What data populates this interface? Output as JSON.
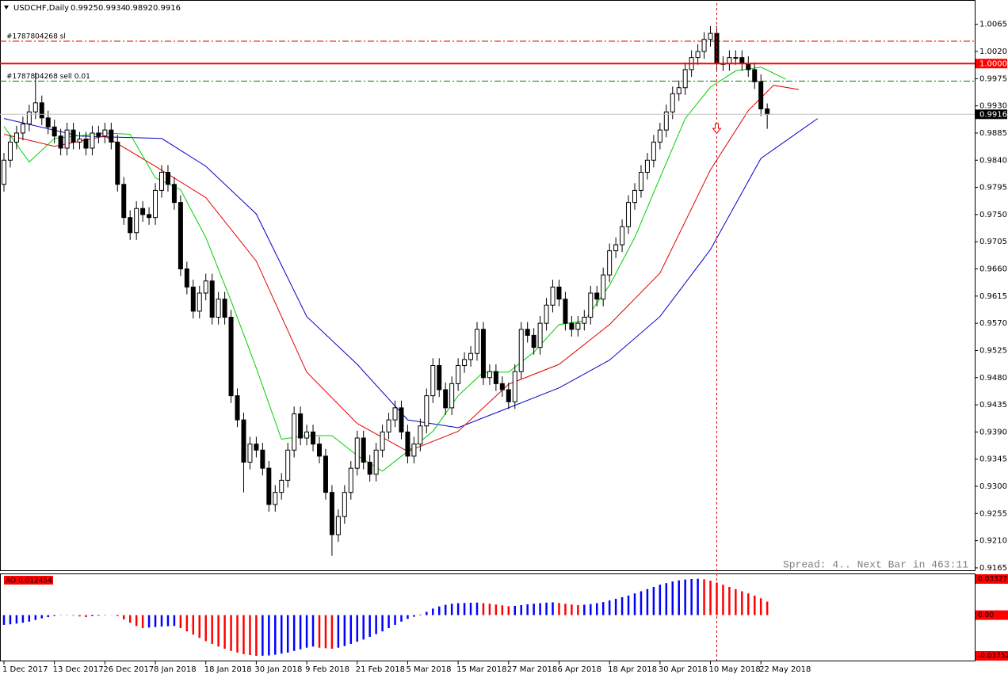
{
  "chart_data": [
    {
      "type": "candlestick",
      "title": "USDCHF,Daily",
      "categories": [
        "1 Dec 2017",
        null,
        null,
        null,
        null,
        null,
        null,
        null,
        "13 Dec 2017",
        null,
        null,
        null,
        null,
        null,
        null,
        null,
        "26 Dec 2017",
        null,
        null,
        null,
        null,
        null,
        null,
        null,
        "8 Jan 2018",
        null,
        null,
        null,
        null,
        null,
        null,
        null,
        "18 Jan 2018",
        null,
        null,
        null,
        null,
        null,
        null,
        null,
        "30 Jan 2018",
        null,
        null,
        null,
        null,
        null,
        null,
        null,
        "9 Feb 2018",
        null,
        null,
        null,
        null,
        null,
        null,
        null,
        "21 Feb 2018",
        null,
        null,
        null,
        null,
        null,
        null,
        null,
        "5 Mar 2018",
        null,
        null,
        null,
        null,
        null,
        null,
        null,
        "15 Mar 2018",
        null,
        null,
        null,
        null,
        null,
        null,
        null,
        "27 Mar 2018",
        null,
        null,
        null,
        null,
        null,
        null,
        null,
        "6 Apr 2018",
        null,
        null,
        null,
        null,
        null,
        null,
        null,
        "18 Apr 2018",
        null,
        null,
        null,
        null,
        null,
        null,
        null,
        "30 Apr 2018",
        null,
        null,
        null,
        null,
        null,
        null,
        null,
        "10 May 2018",
        null,
        null,
        null,
        null,
        null,
        null,
        null,
        "22 May 2018",
        null
      ],
      "open": [
        0.98,
        0.984,
        0.987,
        0.9885,
        0.99,
        0.992,
        0.9935,
        0.991,
        0.9895,
        0.988,
        0.986,
        0.989,
        0.987,
        0.9875,
        0.986,
        0.9885,
        0.988,
        0.989,
        0.987,
        0.98,
        0.9745,
        0.972,
        0.976,
        0.975,
        0.9745,
        0.979,
        0.982,
        0.98,
        0.977,
        0.966,
        0.963,
        0.959,
        0.962,
        0.964,
        0.958,
        0.961,
        0.958,
        0.945,
        0.941,
        0.934,
        0.937,
        0.936,
        0.933,
        0.927,
        0.929,
        0.931,
        0.936,
        0.942,
        0.938,
        0.939,
        0.937,
        0.935,
        0.929,
        0.922,
        0.925,
        0.929,
        0.933,
        0.938,
        0.934,
        0.932,
        0.936,
        0.939,
        0.941,
        0.943,
        0.939,
        0.935,
        0.937,
        0.94,
        0.945,
        0.95,
        0.946,
        0.943,
        0.947,
        0.95,
        0.951,
        0.952,
        0.956,
        0.948,
        0.949,
        0.947,
        0.946,
        0.944,
        0.949,
        0.956,
        0.955,
        0.953,
        0.957,
        0.96,
        0.963,
        0.961,
        0.957,
        0.956,
        0.957,
        0.958,
        0.962,
        0.961,
        0.965,
        0.969,
        0.97,
        0.973,
        0.977,
        0.979,
        0.982,
        0.984,
        0.987,
        0.989,
        0.992,
        0.995,
        0.996,
        0.999,
        1.001,
        1.002,
        1.004,
        1.005,
        1,
        1,
        1.001,
        1.001,
        1,
        0.999,
        0.997,
        0.9925
      ],
      "high": [
        0.9852,
        0.9882,
        0.9897,
        0.9912,
        0.9932,
        0.9985,
        0.9947,
        0.9922,
        0.9907,
        0.9892,
        0.9902,
        0.9902,
        0.9887,
        0.9887,
        0.9897,
        0.9897,
        0.9902,
        0.9902,
        0.9882,
        0.9812,
        0.9757,
        0.9772,
        0.9772,
        0.9762,
        0.9802,
        0.9832,
        0.9832,
        0.9812,
        0.9782,
        0.9672,
        0.9642,
        0.9632,
        0.9652,
        0.9652,
        0.9622,
        0.9622,
        0.9592,
        0.9462,
        0.9422,
        0.9382,
        0.9382,
        0.9372,
        0.9342,
        0.9302,
        0.9322,
        0.9372,
        0.9432,
        0.9432,
        0.9402,
        0.9402,
        0.9382,
        0.9362,
        0.9302,
        0.9262,
        0.9302,
        0.9342,
        0.9392,
        0.9392,
        0.9352,
        0.9372,
        0.9402,
        0.9422,
        0.9442,
        0.9442,
        0.9402,
        0.9382,
        0.9412,
        0.9462,
        0.9512,
        0.9512,
        0.9472,
        0.9482,
        0.9512,
        0.9522,
        0.9532,
        0.9572,
        0.9572,
        0.9502,
        0.9502,
        0.9482,
        0.9472,
        0.9502,
        0.9572,
        0.9572,
        0.9562,
        0.9582,
        0.9612,
        0.9642,
        0.9642,
        0.9622,
        0.9582,
        0.9582,
        0.9592,
        0.9632,
        0.9632,
        0.9662,
        0.9702,
        0.9712,
        0.9742,
        0.9782,
        0.9802,
        0.9832,
        0.9852,
        0.9882,
        0.9902,
        0.9932,
        0.9962,
        0.9972,
        1.0002,
        1.0022,
        1.0032,
        1.0052,
        1.0062,
        1.0062,
        1.0012,
        1.0022,
        1.0022,
        1.0022,
        1.0012,
        1.0002,
        0.9982,
        0.9934
      ],
      "low": [
        0.9788,
        0.9828,
        0.9858,
        0.9873,
        0.9888,
        0.9908,
        0.9898,
        0.9883,
        0.9868,
        0.9848,
        0.9848,
        0.9858,
        0.9858,
        0.9848,
        0.9848,
        0.9868,
        0.9868,
        0.9858,
        0.9788,
        0.9733,
        0.9708,
        0.9708,
        0.9738,
        0.9733,
        0.9733,
        0.9778,
        0.9788,
        0.9758,
        0.9648,
        0.9618,
        0.9578,
        0.9578,
        0.9608,
        0.9568,
        0.9568,
        0.9568,
        0.9438,
        0.9398,
        0.929,
        0.9328,
        0.9348,
        0.9318,
        0.9258,
        0.9258,
        0.9278,
        0.9298,
        0.9348,
        0.9368,
        0.9368,
        0.9358,
        0.9338,
        0.9278,
        0.9185,
        0.9208,
        0.9238,
        0.9278,
        0.9318,
        0.9328,
        0.9308,
        0.9308,
        0.9348,
        0.9378,
        0.9398,
        0.9378,
        0.9338,
        0.9338,
        0.9358,
        0.9388,
        0.9438,
        0.9448,
        0.9418,
        0.9418,
        0.9458,
        0.9488,
        0.9498,
        0.9508,
        0.9468,
        0.9468,
        0.9458,
        0.9448,
        0.9428,
        0.9428,
        0.9478,
        0.9538,
        0.9518,
        0.9518,
        0.9558,
        0.9588,
        0.9598,
        0.9558,
        0.9548,
        0.9548,
        0.9558,
        0.9568,
        0.9598,
        0.9598,
        0.9638,
        0.9678,
        0.9688,
        0.9718,
        0.9758,
        0.9778,
        0.9808,
        0.9828,
        0.9858,
        0.9878,
        0.9908,
        0.9938,
        0.9948,
        0.9978,
        0.9998,
        1.0008,
        1.0028,
        0.9988,
        0.9988,
        0.9988,
        0.9998,
        0.9988,
        0.9978,
        0.9958,
        0.9913,
        0.9892
      ],
      "close": [
        0.984,
        0.987,
        0.9885,
        0.99,
        0.992,
        0.9935,
        0.991,
        0.9895,
        0.988,
        0.986,
        0.989,
        0.987,
        0.9875,
        0.986,
        0.9885,
        0.988,
        0.989,
        0.987,
        0.98,
        0.9745,
        0.972,
        0.976,
        0.975,
        0.9745,
        0.979,
        0.982,
        0.98,
        0.977,
        0.966,
        0.963,
        0.959,
        0.962,
        0.964,
        0.958,
        0.961,
        0.958,
        0.945,
        0.941,
        0.934,
        0.937,
        0.936,
        0.933,
        0.927,
        0.929,
        0.931,
        0.936,
        0.942,
        0.938,
        0.939,
        0.937,
        0.935,
        0.929,
        0.922,
        0.925,
        0.929,
        0.933,
        0.938,
        0.934,
        0.932,
        0.936,
        0.939,
        0.941,
        0.943,
        0.939,
        0.935,
        0.937,
        0.94,
        0.945,
        0.95,
        0.946,
        0.943,
        0.947,
        0.95,
        0.951,
        0.952,
        0.956,
        0.948,
        0.949,
        0.947,
        0.946,
        0.944,
        0.949,
        0.956,
        0.955,
        0.953,
        0.957,
        0.96,
        0.963,
        0.961,
        0.957,
        0.956,
        0.957,
        0.958,
        0.962,
        0.961,
        0.965,
        0.969,
        0.97,
        0.973,
        0.977,
        0.979,
        0.982,
        0.984,
        0.987,
        0.989,
        0.992,
        0.995,
        0.996,
        0.999,
        1.001,
        1.002,
        1.004,
        1.005,
        1,
        1,
        1.001,
        1.001,
        1,
        0.999,
        0.997,
        0.9925,
        0.9916
      ],
      "up_color": "#ffffff",
      "down_color": "#000000",
      "ylim": [
        0.9161,
        1.01
      ],
      "yticks": [
        1.0065,
        {
          "value": 1.002,
          "label": "1.0020"
        },
        0.9975,
        {
          "value": 0.993,
          "label": "0.9930"
        },
        0.9885,
        {
          "value": 0.984,
          "label": "0.9840"
        },
        0.9795,
        {
          "value": 0.975,
          "label": "0.9750"
        },
        0.9705,
        {
          "value": 0.966,
          "label": "0.9660"
        },
        0.9615,
        {
          "value": 0.957,
          "label": "0.9570"
        },
        0.9525,
        {
          "value": 0.948,
          "label": "0.9480"
        },
        0.9435,
        {
          "value": 0.939,
          "label": "0.9390"
        },
        0.9345,
        {
          "value": 0.93,
          "label": "0.9300"
        },
        0.9255,
        {
          "value": 0.921,
          "label": "0.9210"
        },
        0.9165
      ],
      "series": [
        {
          "color": "#0000c8",
          "x": [
            0,
            12,
            25,
            32,
            40,
            48,
            56,
            64,
            72,
            80,
            88,
            96,
            104,
            112,
            120,
            129
          ],
          "values": [
            0.9909,
            0.988,
            0.9876,
            0.983,
            0.9751,
            0.9581,
            0.9502,
            0.941,
            0.9397,
            0.943,
            0.9463,
            0.9509,
            0.9581,
            0.9692,
            0.9843,
            0.9909
          ]
        },
        {
          "color": "#e00000",
          "x": [
            0,
            8,
            16,
            24,
            32,
            40,
            48,
            56,
            64,
            72,
            80,
            88,
            96,
            104,
            112,
            118,
            122,
            126
          ],
          "values": [
            0.9883,
            0.9863,
            0.988,
            0.983,
            0.9778,
            0.9673,
            0.9489,
            0.9404,
            0.9358,
            0.9391,
            0.9469,
            0.9502,
            0.9568,
            0.9653,
            0.9824,
            0.9922,
            0.9964,
            0.9957
          ]
        },
        {
          "color": "#00d000",
          "x": [
            0,
            4,
            8,
            16,
            20,
            24,
            28,
            32,
            36,
            40,
            44,
            48,
            52,
            56,
            60,
            64,
            68,
            72,
            76,
            80,
            84,
            88,
            92,
            96,
            100,
            104,
            108,
            112,
            116,
            120,
            124
          ],
          "values": [
            0.9896,
            0.9837,
            0.9876,
            0.9885,
            0.9883,
            0.9811,
            0.9791,
            0.9712,
            0.9607,
            0.9496,
            0.9378,
            0.9384,
            0.9384,
            0.9351,
            0.9325,
            0.9358,
            0.9391,
            0.945,
            0.9489,
            0.9489,
            0.9522,
            0.9568,
            0.9574,
            0.9633,
            0.9712,
            0.9811,
            0.9909,
            0.9961,
            0.9988,
            0.9994,
            0.9974
          ]
        }
      ],
      "levels": [
        {
          "name": "#1787804268 sl",
          "value": 1.0037,
          "color": "#e00000"
        },
        {
          "name": "#1787804268 sell 0.01",
          "value": 0.9971,
          "color": "#008000"
        }
      ],
      "price_marker": {
        "value": 1,
        "label": "1.0000",
        "color": "#ff0000"
      },
      "vline": 113,
      "arrow": {
        "x": 113,
        "y": 0.989
      },
      "status_text": "Spread: 4.. Next Bar in 463:11"
    },
    {
      "type": "bar",
      "title": "AO 0.012454",
      "values": [
        -0.009,
        -0.0085,
        -0.0078,
        -0.007,
        -0.006,
        -0.0045,
        -0.003,
        -0.0018,
        -0.0008,
        -0.0002,
        0.0002,
        -0.0005,
        -0.0012,
        -0.0018,
        -0.001,
        -0.0006,
        -0.0003,
        -0.0001,
        -0.001,
        -0.004,
        -0.007,
        -0.01,
        -0.012,
        -0.0115,
        -0.011,
        -0.0105,
        -0.0102,
        -0.01,
        -0.012,
        -0.015,
        -0.018,
        -0.021,
        -0.024,
        -0.0265,
        -0.029,
        -0.031,
        -0.033,
        -0.0345,
        -0.036,
        -0.0368,
        -0.0375,
        -0.0374,
        -0.0372,
        -0.0365,
        -0.0355,
        -0.0345,
        -0.033,
        -0.0315,
        -0.03,
        -0.029,
        -0.03,
        -0.0305,
        -0.031,
        -0.03,
        -0.0285,
        -0.0265,
        -0.0245,
        -0.0225,
        -0.02,
        -0.0175,
        -0.015,
        -0.012,
        -0.009,
        -0.006,
        -0.0035,
        -0.0015,
        0.0005,
        0.003,
        0.006,
        0.008,
        0.0095,
        0.0105,
        0.011,
        0.0112,
        0.0114,
        0.0115,
        0.011,
        0.0105,
        0.0098,
        0.009,
        0.0082,
        0.0085,
        0.0092,
        0.01,
        0.0105,
        0.011,
        0.0115,
        0.0118,
        0.0112,
        0.0105,
        0.0098,
        0.0092,
        0.0096,
        0.0102,
        0.011,
        0.012,
        0.0135,
        0.015,
        0.0165,
        0.018,
        0.02,
        0.022,
        0.024,
        0.026,
        0.028,
        0.0295,
        0.031,
        0.032,
        0.0328,
        0.0333,
        0.0335,
        0.033,
        0.0318,
        0.03,
        0.028,
        0.026,
        0.024,
        0.022,
        0.02,
        0.018,
        0.0155,
        0.012454
      ],
      "up_color": "#0000ff",
      "down_color": "#ff0000",
      "ylim": [
        -0.0419,
        0.0384
      ],
      "yticks": [
        0.03327,
        {
          "value": 0,
          "label": "0.00"
        },
        -0.03752
      ]
    }
  ]
}
